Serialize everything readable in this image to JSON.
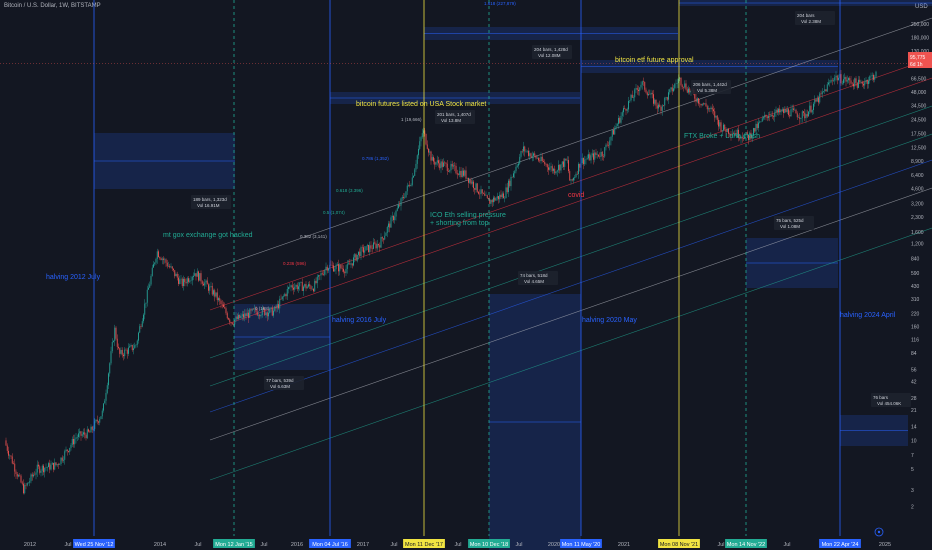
{
  "header": {
    "title": "Bitcoin / U.S. Dollar, 1W, BITSTAMP",
    "currency": "USD"
  },
  "price_labels": {
    "last": "95,775",
    "countdown": "6d 1h"
  },
  "colors": {
    "background": "#131722",
    "up": "#26a69a",
    "down": "#ef5350",
    "halving_line": "#2962ff",
    "event_line": "#f0e442",
    "crash_line": "#22ab94"
  },
  "chart_data": {
    "type": "candlestick",
    "title": "Bitcoin / U.S. Dollar, 1W, BITSTAMP",
    "y_scale": "log",
    "ylim": [
      1,
      450000
    ],
    "y_ticks": [
      1,
      2,
      3,
      5,
      7,
      10,
      14,
      21,
      28,
      42,
      56,
      84,
      116,
      160,
      220,
      310,
      430,
      590,
      840,
      1200,
      1600,
      2300,
      3200,
      4600,
      6400,
      8900,
      12500,
      17500,
      24500,
      34500,
      48000,
      66500,
      92000,
      130000,
      180000,
      250000
    ],
    "y_tick_labels": [
      "1",
      "2",
      "3",
      "5",
      "7",
      "10",
      "14",
      "21",
      "28",
      "42",
      "56",
      "84",
      "116",
      "160",
      "220",
      "310",
      "430",
      "590",
      "840",
      "1,200",
      "1,600",
      "2,300",
      "3,200",
      "4,600",
      "6,400",
      "8,900",
      "12,500",
      "17,500",
      "24,500",
      "34,500",
      "48,000",
      "66,500",
      "92,000",
      "130,000",
      "180,000",
      "250,000"
    ],
    "x_labels": [
      "2012",
      "Jul",
      "Wed 25 Nov '12",
      "2014",
      "Jul",
      "Mon 12 Jan '15",
      "Jul",
      "2016",
      "Mon 04 Jul '16",
      "2017",
      "Jul",
      "Mon 11 Dec '17",
      "Jul",
      "Mon 10 Dec '18",
      "Jul",
      "2020",
      "Mon 11 May '20",
      "2021",
      "Mon 08 Nov '21",
      "Jul",
      "Mon 14 Nov '22",
      "Jul",
      "Mon 22 Apr '24",
      "2025"
    ],
    "price_path": [
      {
        "t": 2011.6,
        "v": 10
      },
      {
        "t": 2011.9,
        "v": 3
      },
      {
        "t": 2012.1,
        "v": 5
      },
      {
        "t": 2012.4,
        "v": 5.5
      },
      {
        "t": 2012.7,
        "v": 11
      },
      {
        "t": 2012.9,
        "v": 12
      },
      {
        "t": 2013.1,
        "v": 20
      },
      {
        "t": 2013.28,
        "v": 150
      },
      {
        "t": 2013.35,
        "v": 80
      },
      {
        "t": 2013.6,
        "v": 100
      },
      {
        "t": 2013.92,
        "v": 1000
      },
      {
        "t": 2014.1,
        "v": 700
      },
      {
        "t": 2014.3,
        "v": 450
      },
      {
        "t": 2014.5,
        "v": 600
      },
      {
        "t": 2014.8,
        "v": 350
      },
      {
        "t": 2015.05,
        "v": 180
      },
      {
        "t": 2015.4,
        "v": 230
      },
      {
        "t": 2015.7,
        "v": 230
      },
      {
        "t": 2015.95,
        "v": 430
      },
      {
        "t": 2016.3,
        "v": 420
      },
      {
        "t": 2016.5,
        "v": 700
      },
      {
        "t": 2016.8,
        "v": 650
      },
      {
        "t": 2017.0,
        "v": 980
      },
      {
        "t": 2017.3,
        "v": 1200
      },
      {
        "t": 2017.6,
        "v": 3000
      },
      {
        "t": 2017.8,
        "v": 6000
      },
      {
        "t": 2017.96,
        "v": 19000
      },
      {
        "t": 2018.1,
        "v": 9000
      },
      {
        "t": 2018.3,
        "v": 8000
      },
      {
        "t": 2018.6,
        "v": 6500
      },
      {
        "t": 2018.95,
        "v": 3300
      },
      {
        "t": 2019.2,
        "v": 4000
      },
      {
        "t": 2019.48,
        "v": 12000
      },
      {
        "t": 2019.7,
        "v": 9500
      },
      {
        "t": 2019.95,
        "v": 7200
      },
      {
        "t": 2020.15,
        "v": 9000
      },
      {
        "t": 2020.2,
        "v": 5000
      },
      {
        "t": 2020.36,
        "v": 9000
      },
      {
        "t": 2020.7,
        "v": 11000
      },
      {
        "t": 2021.0,
        "v": 30000
      },
      {
        "t": 2021.28,
        "v": 60000
      },
      {
        "t": 2021.55,
        "v": 32000
      },
      {
        "t": 2021.85,
        "v": 66000
      },
      {
        "t": 2022.1,
        "v": 42000
      },
      {
        "t": 2022.35,
        "v": 30000
      },
      {
        "t": 2022.5,
        "v": 20000
      },
      {
        "t": 2022.9,
        "v": 16000
      },
      {
        "t": 2023.2,
        "v": 28000
      },
      {
        "t": 2023.5,
        "v": 30000
      },
      {
        "t": 2023.75,
        "v": 27000
      },
      {
        "t": 2024.0,
        "v": 43000
      },
      {
        "t": 2024.2,
        "v": 70000
      },
      {
        "t": 2024.6,
        "v": 58000
      },
      {
        "t": 2024.85,
        "v": 75000
      },
      {
        "t": 2024.95,
        "v": 95775
      }
    ]
  },
  "annotations": {
    "halving_2012": "halving 2012 July",
    "halving_2016": "halving 2016 July",
    "halving_2020": "halving 2020 May",
    "halving_2024": "halving 2024 April",
    "mt_gox": "mt gox exchange got hacked",
    "futures": "bitcoin futures listed on USA Stock market",
    "etf": "bitcoin etf future approval",
    "ico": "ICO Eth selling pressure\n+ shorting from top",
    "ftx": "FTX Broke + Luna crash",
    "covid": "covid"
  },
  "fib_levels": [
    {
      "label": "1 (19,666)",
      "color": "#b2b5be"
    },
    {
      "label": "0.786 (1,352)",
      "color": "#2962ff"
    },
    {
      "label": "0.618 (3.396)",
      "color": "#22ab94"
    },
    {
      "label": "0.5 (1,074)",
      "color": "#22ab94"
    },
    {
      "label": "0.382 (3,141)",
      "color": "#b2b5be"
    },
    {
      "label": "0.236 (596)",
      "color": "#f23645"
    },
    {
      "label": "0 (198)",
      "color": "#b2b5be"
    }
  ],
  "boxes": [
    {
      "line1": "189 bars, 1,323d",
      "line2": "Vol 16.91M"
    },
    {
      "line1": "77 bars, 539d",
      "line2": "Vol 6.63M"
    },
    {
      "line1": "201 bars, 1,407d",
      "line2": "Vol 13.8M"
    },
    {
      "line1": "74 bars, 518d",
      "line2": "Vol 4.65M"
    },
    {
      "line1": "204 bars, 1,428d",
      "line2": "Vol 12.08M"
    },
    {
      "line1": "206 bars, 1,442d",
      "line2": "Vol 5.38M"
    },
    {
      "line1": "75 bars, 525d",
      "line2": "Vol 1.08M"
    },
    {
      "line1": "204 bars",
      "line2": "Vol 2.38M"
    },
    {
      "line1": "76 bars",
      "line2": "Vol 454.06K"
    }
  ],
  "top_label": "1.618 (227,879)"
}
